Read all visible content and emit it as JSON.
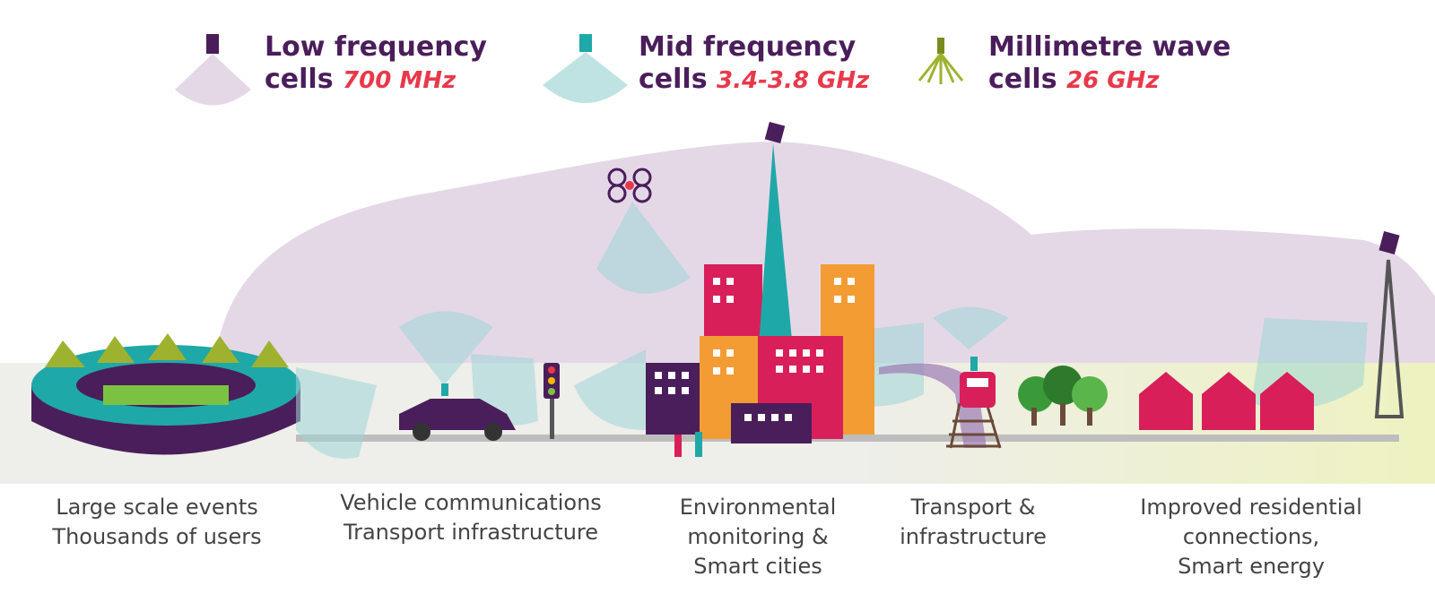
{
  "legend": [
    {
      "name": "Low frequency",
      "line2": "cells",
      "frequency": "700 MHz"
    },
    {
      "name": "Mid frequency",
      "line2": "cells",
      "frequency": "3.4-3.8 GHz"
    },
    {
      "name": "Millimetre wave",
      "line2": "cells",
      "frequency": "26 GHz"
    }
  ],
  "captions": [
    {
      "lines": [
        "Large scale events",
        "Thousands of users"
      ]
    },
    {
      "lines": [
        "Vehicle communications",
        "Transport infrastructure"
      ]
    },
    {
      "lines": [
        "Environmental",
        "monitoring &",
        "Smart cities"
      ]
    },
    {
      "lines": [
        "Transport &",
        "infrastructure"
      ]
    },
    {
      "lines": [
        "Improved residential",
        "connections,",
        "Smart energy"
      ]
    }
  ]
}
